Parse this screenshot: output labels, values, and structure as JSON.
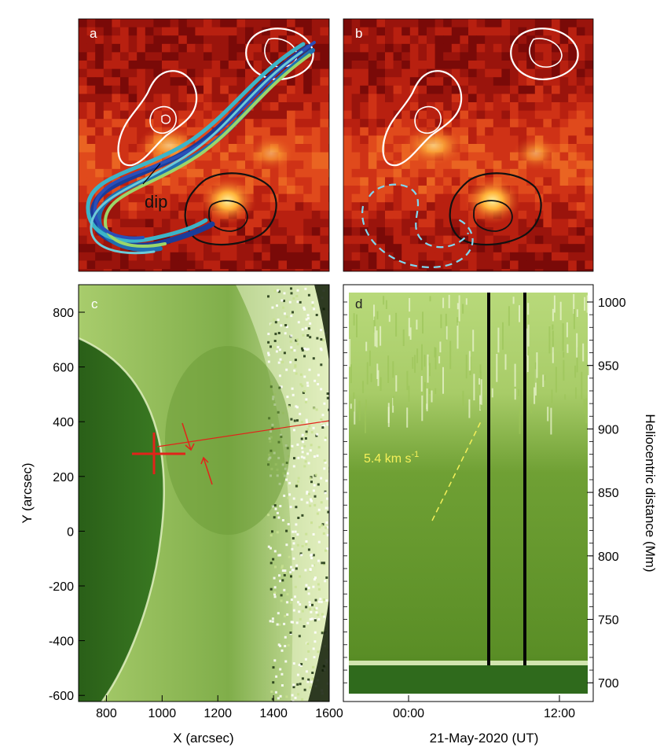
{
  "panels": {
    "a": {
      "label": "a",
      "annotation": "dip"
    },
    "b": {
      "label": "b"
    },
    "c": {
      "label": "c",
      "xlabel": "X (arcsec)",
      "ylabel": "Y (arcsec)",
      "xticks": [
        "800",
        "1000",
        "1200",
        "1400",
        "1600"
      ],
      "yticks": [
        "800",
        "600",
        "400",
        "200",
        "0",
        "-200",
        "-400",
        "-600"
      ]
    },
    "d": {
      "label": "d",
      "xlabel": "21-May-2020 (UT)",
      "ylabel": "Heliocentric distance (Mm)",
      "xticks": [
        "00:00",
        "12:00"
      ],
      "yticks": [
        "1000",
        "950",
        "900",
        "850",
        "800",
        "750",
        "700"
      ],
      "speed_annotation": "5.4 km s",
      "speed_superscript": "-1"
    }
  },
  "colors": {
    "heatmap_dark": "#7a0a08",
    "heatmap_mid": "#d8361a",
    "heatmap_bright": "#ffd25a",
    "euv_dark": "#2f6a1c",
    "euv_light": "#c6e08a",
    "contour_white": "#ffffff",
    "contour_black": "#111111",
    "flux_rope": [
      "#1a3c9a",
      "#1f6fb0",
      "#3cb4c8",
      "#9bd66a",
      "#2a4fb8"
    ],
    "dashed_cyan": "#7fd8f0",
    "marker_red": "#e2231a",
    "annotation_yellow": "#f5f05a"
  }
}
